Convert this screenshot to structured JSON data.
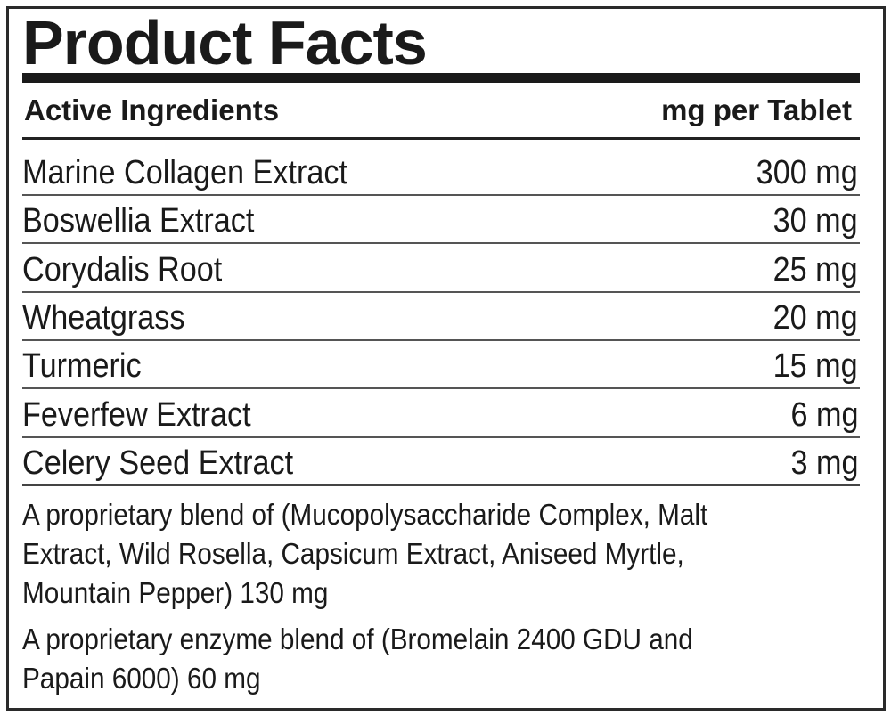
{
  "title": "Product Facts",
  "header": {
    "left": "Active Ingredients",
    "right": "mg per Tablet"
  },
  "ingredients": [
    {
      "name": "Marine Collagen Extract",
      "amount": "300 mg"
    },
    {
      "name": "Boswellia Extract",
      "amount": "30 mg"
    },
    {
      "name": "Corydalis Root",
      "amount": "25 mg"
    },
    {
      "name": "Wheatgrass",
      "amount": "20 mg"
    },
    {
      "name": "Turmeric",
      "amount": "15 mg"
    },
    {
      "name": "Feverfew Extract",
      "amount": "6 mg"
    },
    {
      "name": "Celery Seed Extract",
      "amount": "3 mg"
    }
  ],
  "blends": [
    {
      "lines": [
        "A proprietary blend of (Mucopolysaccharide Complex, Malt",
        "Extract, Wild Rosella, Capsicum Extract, Aniseed Myrtle,",
        "Mountain Pepper) 130 mg"
      ]
    },
    {
      "lines": [
        "A proprietary enzyme blend of (Bromelain 2400 GDU and",
        "Papain 6000) 60 mg"
      ]
    }
  ]
}
